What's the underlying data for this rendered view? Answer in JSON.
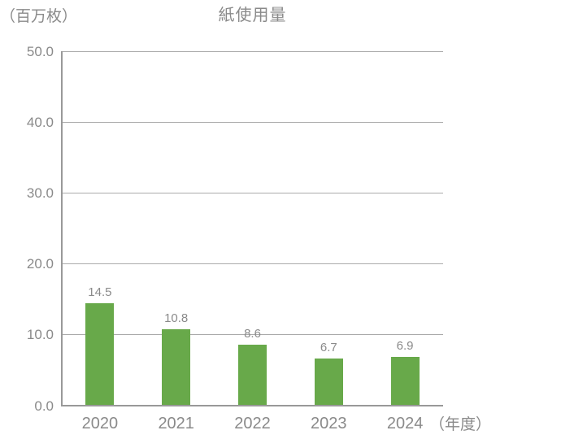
{
  "chart": {
    "title": "紙使用量",
    "y_unit": "（百万枚）",
    "x_unit": "（年度）"
  },
  "colors": {
    "bar": "#68a94a",
    "gridline": "#ababab",
    "axis": "#999999",
    "text": "#8a8a8a",
    "background": "#ffffff"
  },
  "chart_data": {
    "type": "bar",
    "title": "紙使用量",
    "categories": [
      "2020",
      "2021",
      "2022",
      "2023",
      "2024"
    ],
    "values": [
      14.5,
      10.8,
      8.6,
      6.7,
      6.9
    ],
    "data_labels": [
      "14.5",
      "10.8",
      "8.6",
      "6.7",
      "6.9"
    ],
    "xlabel": "（年度）",
    "ylabel": "（百万枚）",
    "ylim": [
      0,
      50
    ],
    "yticks": [
      0,
      10,
      20,
      30,
      40,
      50
    ],
    "ytick_labels": [
      "0.0",
      "10.0",
      "20.0",
      "30.0",
      "40.0",
      "50.0"
    ],
    "grid": true,
    "legend": false,
    "bar_color": "#68a94a"
  }
}
